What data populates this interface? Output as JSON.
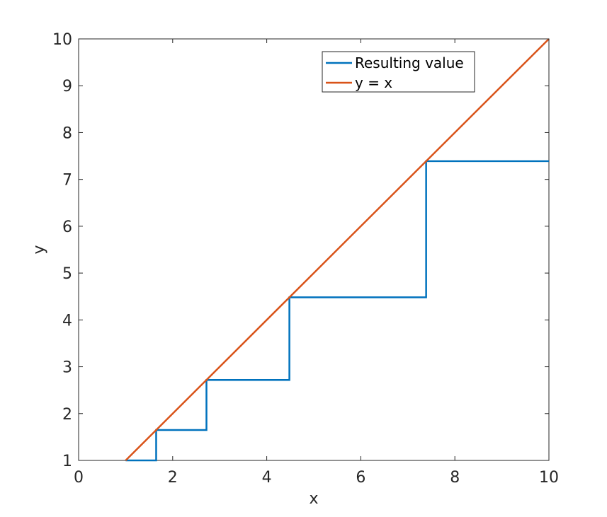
{
  "chart_data": {
    "type": "line",
    "title": "",
    "xlabel": "x",
    "ylabel": "y",
    "xlim": [
      0,
      10
    ],
    "ylim": [
      1,
      10
    ],
    "xticks": [
      0,
      2,
      4,
      6,
      8,
      10
    ],
    "yticks": [
      1,
      2,
      3,
      4,
      5,
      6,
      7,
      8,
      9,
      10
    ],
    "grid": false,
    "box": true,
    "legend_position": "top-right",
    "series": [
      {
        "name": "Resulting value",
        "color": "#0072BD",
        "style": "step",
        "x": [
          1,
          1.6487,
          1.6487,
          2.7183,
          2.7183,
          4.4817,
          4.4817,
          7.3891,
          7.3891,
          10
        ],
        "y": [
          1,
          1,
          1.6487,
          1.6487,
          2.7183,
          2.7183,
          4.4817,
          4.4817,
          7.3891,
          7.3891
        ]
      },
      {
        "name": "y = x",
        "color": "#D95319",
        "style": "line",
        "x": [
          1,
          10
        ],
        "y": [
          1,
          10
        ]
      }
    ]
  }
}
